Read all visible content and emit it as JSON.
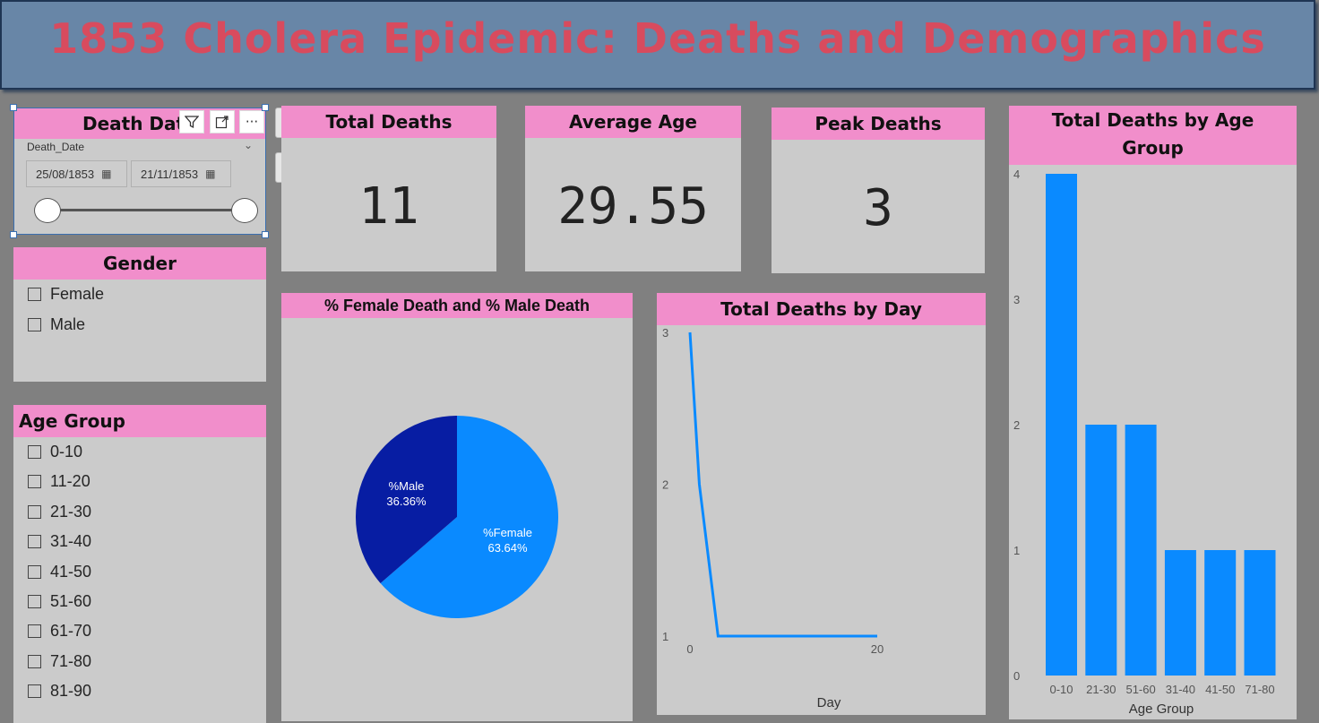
{
  "report": {
    "title": "1853 Cholera Epidemic: Deaths and Demographics"
  },
  "date_slicer": {
    "title": "Death Date",
    "field_label": "Death_Date",
    "start_date": "25/08/1853",
    "end_date": "21/11/1853",
    "toolbar": [
      "filter-icon",
      "focus-mode-icon",
      "more-options-icon"
    ]
  },
  "gender_slicer": {
    "title": "Gender",
    "options": [
      "Female",
      "Male"
    ]
  },
  "age_slicer": {
    "title": "Age Group",
    "options": [
      "0-10",
      "11-20",
      "21-30",
      "31-40",
      "41-50",
      "51-60",
      "61-70",
      "71-80",
      "81-90"
    ]
  },
  "kpis": [
    {
      "title": "Total Deaths",
      "value": "11"
    },
    {
      "title": "Average Age",
      "value": "29.55"
    },
    {
      "title": "Peak Deaths",
      "value": "3"
    }
  ],
  "colors": {
    "header_pink": "#f18ecb",
    "title_red": "#d84b5e",
    "female_blue": "#0a8aff",
    "male_navy": "#071da3",
    "card_bg": "#cbcbcb"
  },
  "chart_data": [
    {
      "type": "pie",
      "title": "% Female Death and % Male Death",
      "slices": [
        {
          "name": "%Female",
          "value": 63.64,
          "label": "63.64%",
          "color": "#0a8aff"
        },
        {
          "name": "%Male",
          "value": 36.36,
          "label": "36.36%",
          "color": "#071da3"
        }
      ]
    },
    {
      "type": "line",
      "title": "Total Deaths by Day",
      "xlabel": "Day",
      "ylabel": "",
      "x": [
        0,
        1,
        3,
        20
      ],
      "y": [
        3,
        2,
        1,
        1
      ],
      "xlim": [
        0,
        20
      ],
      "ylim": [
        1,
        3
      ],
      "xticks": [
        "0",
        "20"
      ],
      "yticks": [
        "1",
        "2",
        "3"
      ],
      "color": "#0a8aff"
    },
    {
      "type": "bar",
      "title": "Total Deaths by Age Group",
      "xlabel": "Age Group",
      "ylabel": "",
      "categories": [
        "0-10",
        "21-30",
        "51-60",
        "31-40",
        "41-50",
        "71-80"
      ],
      "values": [
        4,
        2,
        2,
        1,
        1,
        1
      ],
      "ylim": [
        0,
        4
      ],
      "yticks": [
        "0",
        "1",
        "2",
        "3",
        "4"
      ],
      "color": "#0a8aff"
    }
  ]
}
